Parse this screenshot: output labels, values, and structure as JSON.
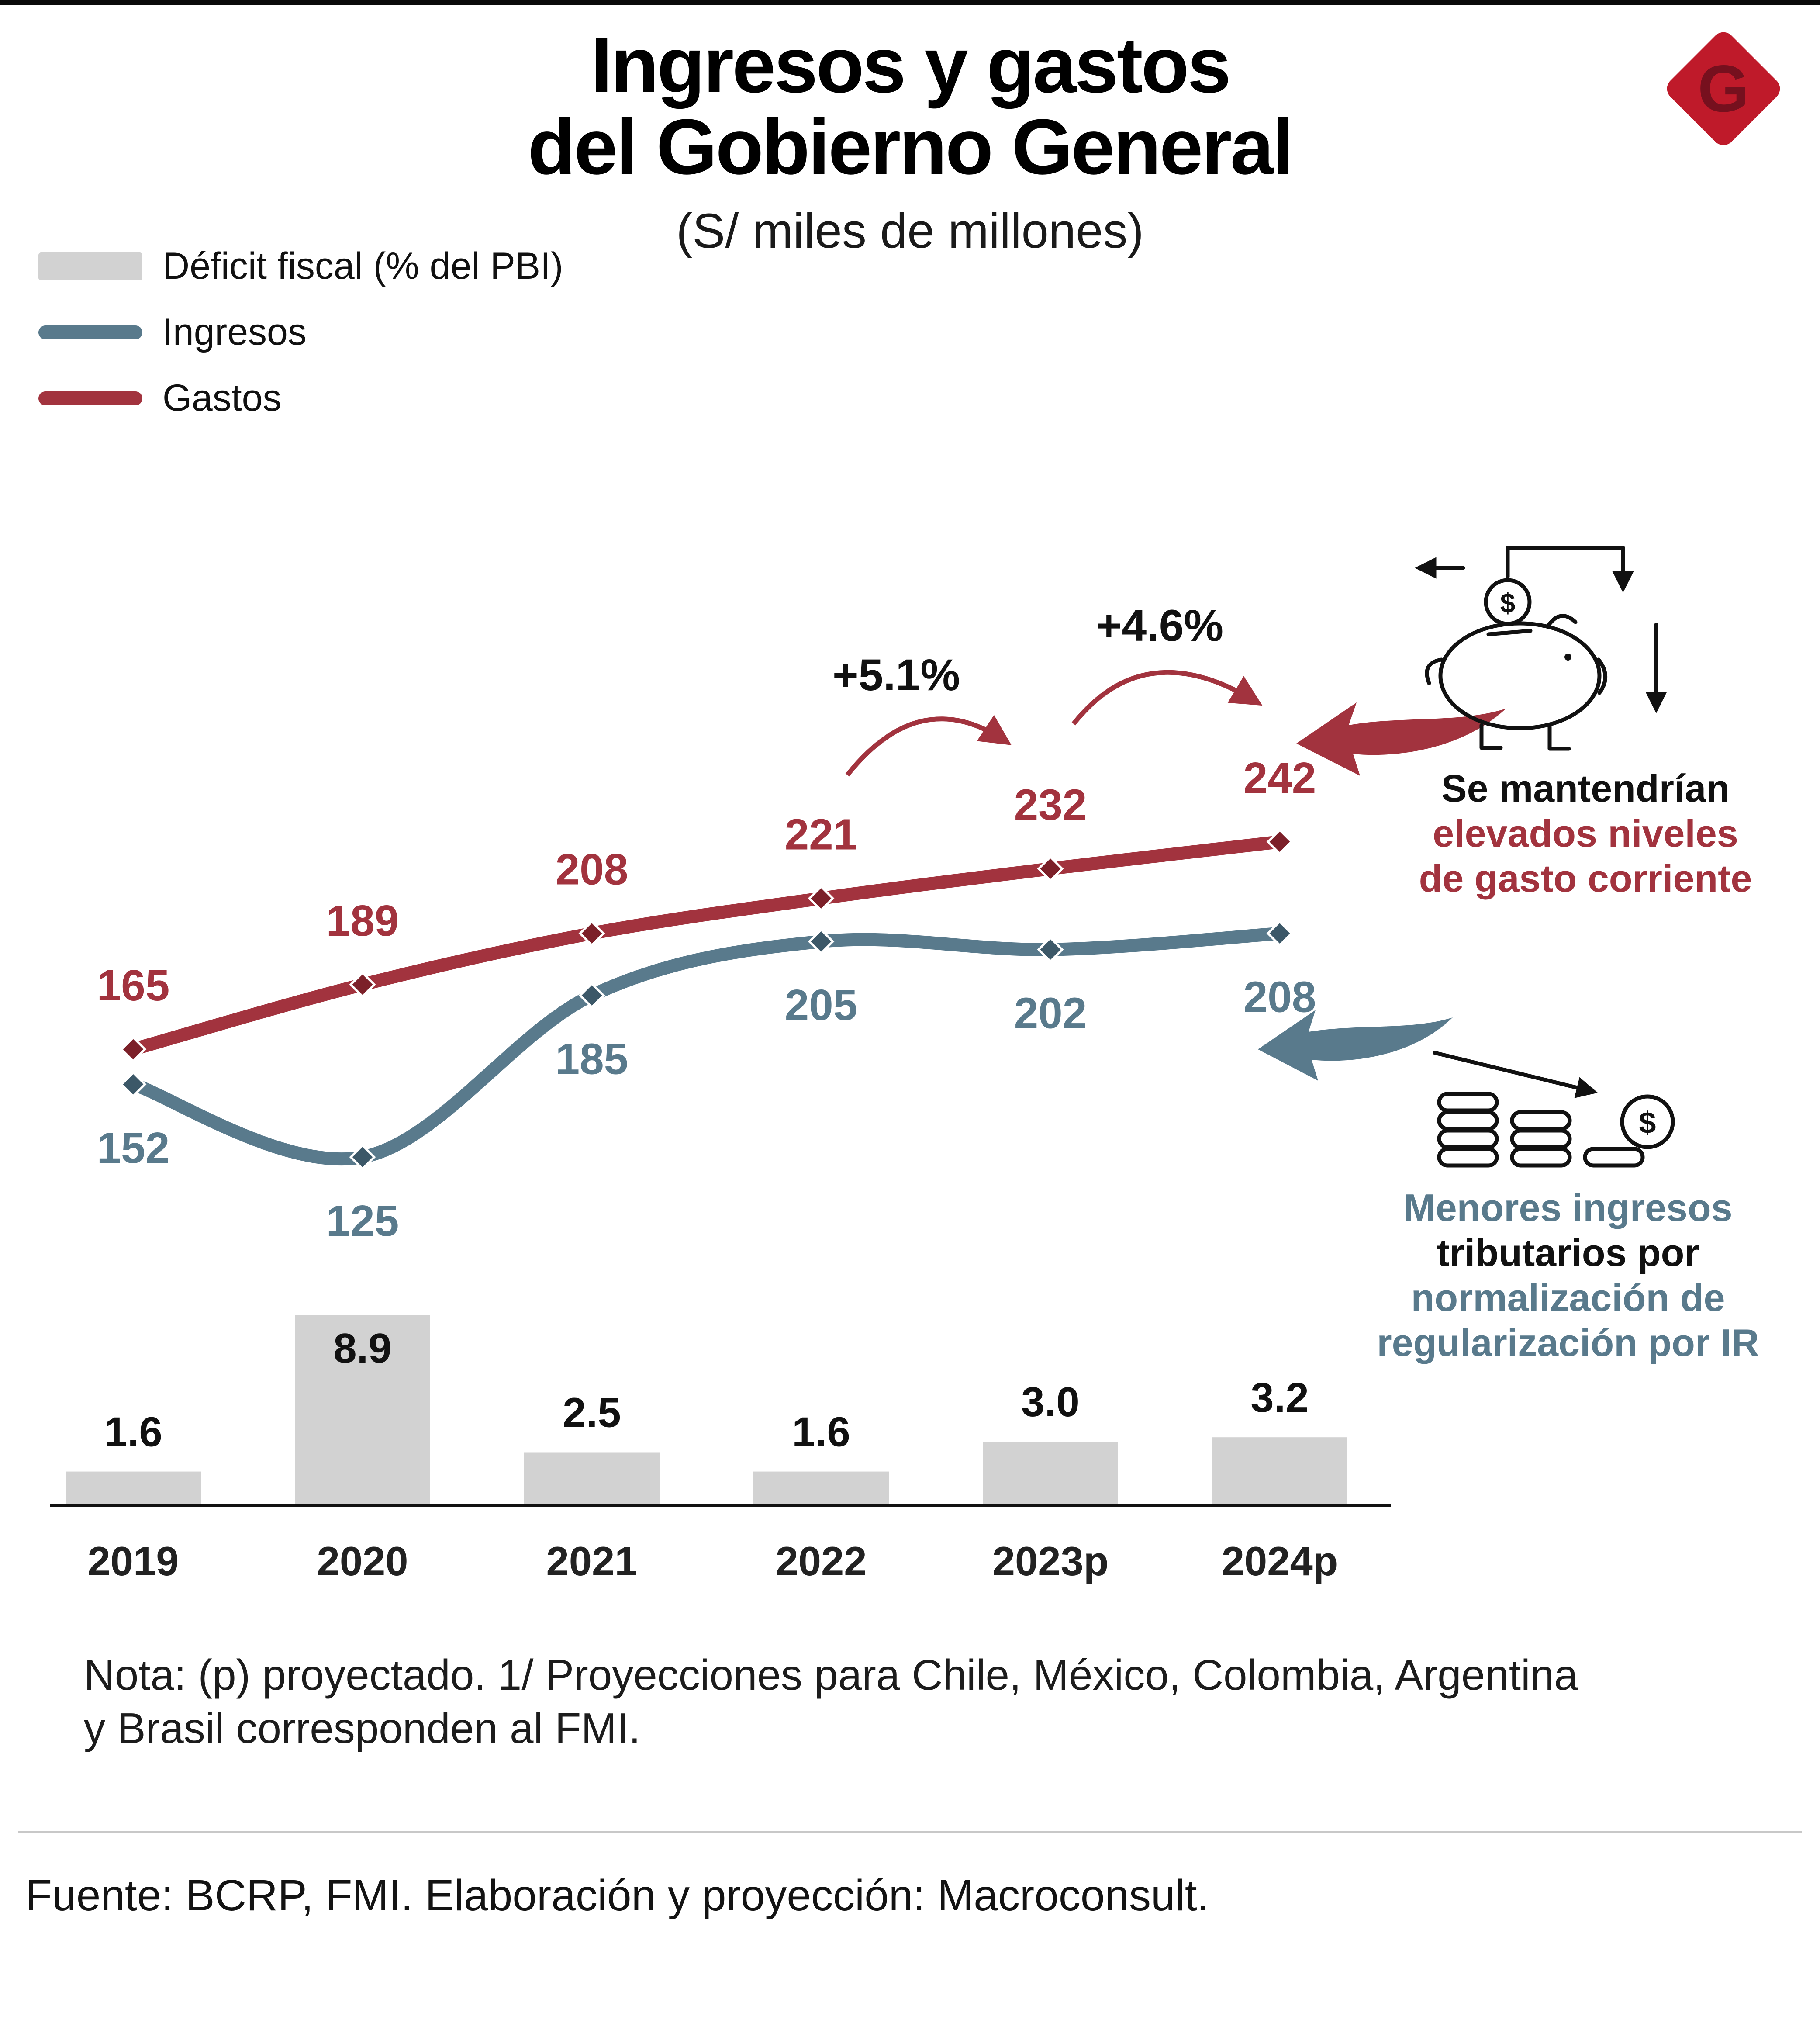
{
  "header": {
    "title_line1": "Ingresos y gastos",
    "title_line2": "del Gobierno General",
    "subtitle": "(S/ miles de millones)",
    "logo_letter": "G",
    "logo_color": "#bf1a2a"
  },
  "legend": {
    "items": [
      {
        "label": "Déficit fiscal (% del PBI)",
        "type": "bar",
        "color": "#d2d2d2"
      },
      {
        "label": "Ingresos",
        "type": "line",
        "color": "#597a8c"
      },
      {
        "label": "Gastos",
        "type": "line",
        "color": "#a2333e"
      }
    ]
  },
  "chart_data": {
    "type": "combo",
    "title": "Ingresos y gastos del Gobierno General",
    "units": "S/ miles de millones",
    "categories": [
      "2019",
      "2020",
      "2021",
      "2022",
      "2023p",
      "2024p"
    ],
    "series": [
      {
        "name": "Gastos",
        "type": "line",
        "color": "#a2333e",
        "marker_color": "#7c2029",
        "values": [
          165,
          189,
          208,
          221,
          232,
          242
        ]
      },
      {
        "name": "Ingresos",
        "type": "line",
        "color": "#597a8c",
        "marker_color": "#3c5868",
        "values": [
          152,
          125,
          185,
          205,
          202,
          208
        ]
      },
      {
        "name": "Déficit fiscal (% del PBI)",
        "type": "bar",
        "color": "#d2d2d2",
        "values": [
          1.6,
          8.9,
          2.5,
          1.6,
          3.0,
          3.2
        ],
        "labels": [
          "1.6",
          "8.9",
          "2.5",
          "1.6",
          "3.0",
          "3.2"
        ]
      }
    ],
    "growth_annotations": [
      {
        "label": "+5.1%",
        "from": "2022",
        "to": "2023p"
      },
      {
        "label": "+4.6%",
        "from": "2023p",
        "to": "2024p"
      }
    ],
    "legend_position": "top-left",
    "grid": false
  },
  "callouts": {
    "gastos": {
      "line1": "Se mantendrían",
      "line2": "elevados niveles",
      "line3": "de gasto corriente"
    },
    "ingresos": {
      "line1": "Menores ingresos",
      "line2": "tributarios por",
      "line3": "normalización de",
      "line4": "regularización por IR"
    }
  },
  "icons": {
    "piggy_dollar": "$",
    "coin_dollar": "$"
  },
  "note": "Nota: (p) proyectado. 1/ Proyecciones para Chile, México, Colombia, Argentina y Brasil corresponden al FMI.",
  "source": "Fuente: BCRP, FMI. Elaboración y proyección: Macroconsult."
}
